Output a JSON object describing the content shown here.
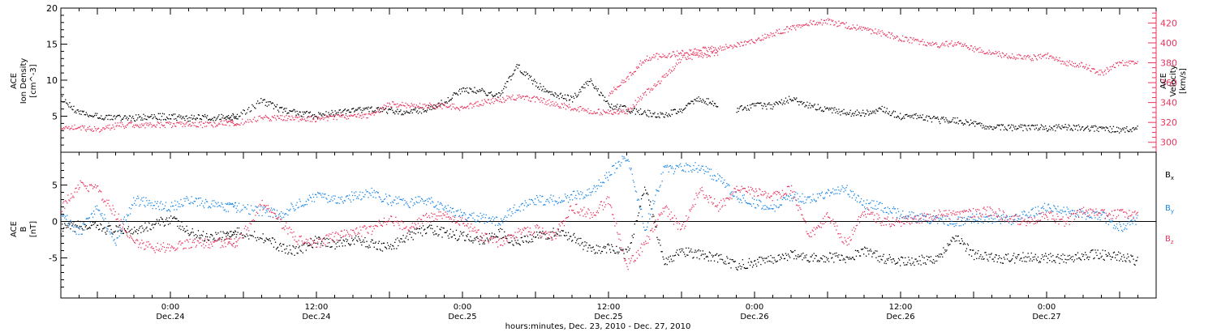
{
  "chart_data": [
    {
      "type": "scatter",
      "title": "",
      "ylabel_left": [
        "ACE",
        "Ion Density",
        "[cm^-3]"
      ],
      "ylabel_right": [
        "ACE",
        "Velocity",
        "[km/s]"
      ],
      "ylim_left": [
        0,
        20
      ],
      "ylim_right": [
        290,
        435
      ],
      "yticks_left": [
        "5",
        "10",
        "15",
        "20"
      ],
      "yticks_right": [
        "300",
        "320",
        "340",
        "360",
        "380",
        "400",
        "420"
      ],
      "series": [
        {
          "name": "",
          "axis": "left",
          "color": "#000000",
          "x": [
            -18,
            -15,
            -12,
            -9,
            -6,
            -3,
            0,
            3,
            6,
            9,
            11,
            15,
            18,
            21,
            24,
            27,
            30,
            33,
            36,
            39,
            42,
            45,
            48,
            51,
            54,
            57,
            60,
            63,
            66,
            69,
            72,
            75,
            78,
            81,
            84,
            87,
            90
          ],
          "y": [
            7.5,
            5.5,
            5.0,
            4.9,
            4.8,
            5.0,
            5.0,
            4.8,
            4.9,
            5.0,
            5.0,
            7.2,
            6.0,
            5.5,
            5.2,
            5.5,
            5.8,
            6.0,
            5.8,
            5.5,
            6.0,
            7.0,
            8.8,
            8.5,
            8.0,
            12.0,
            9.5,
            8.0,
            7.5,
            10.0,
            6.5,
            6.0,
            5.5,
            5.2,
            6.0,
            7.5,
            6.5
          ]
        },
        {
          "name": "",
          "axis": "right",
          "color": "#e8345e",
          "x": [
            -18,
            -15,
            -12,
            -9,
            -6,
            -3,
            0,
            3,
            6,
            9,
            11,
            15,
            18,
            21,
            24,
            27,
            30,
            33,
            36,
            39,
            42,
            45,
            48,
            51,
            54,
            57,
            60,
            63,
            66,
            69,
            72,
            75,
            78,
            81,
            84,
            87,
            90
          ],
          "y": [
            316,
            315,
            313,
            317,
            318,
            318,
            318,
            319,
            318,
            320,
            320,
            325,
            325,
            324,
            324,
            326,
            327,
            327,
            339,
            338,
            337,
            337,
            335,
            340,
            343,
            346,
            344,
            339,
            335,
            332,
            330,
            332,
            350,
            365,
            385,
            388,
            390
          ]
        },
        {
          "name": "",
          "axis": "right",
          "color": "#e8345e",
          "x": [
            72,
            75,
            78,
            81,
            84,
            87,
            90,
            93,
            96,
            99,
            102,
            105,
            108,
            111,
            114,
            117,
            120,
            123,
            126,
            129,
            132,
            135,
            138,
            141,
            144,
            147,
            150,
            153,
            156,
            159
          ],
          "y": [
            350,
            365,
            385,
            388,
            390,
            393,
            395,
            398,
            403,
            410,
            415,
            420,
            422,
            418,
            414,
            410,
            405,
            402,
            398,
            400,
            394,
            390,
            387,
            385,
            388,
            380,
            378,
            370,
            380,
            380
          ]
        },
        {
          "name": "",
          "axis": "left",
          "color": "#000000",
          "x": [
            93,
            96,
            99,
            102,
            105,
            108,
            111,
            114,
            117,
            120,
            123,
            126,
            129,
            132,
            135,
            138,
            141,
            144,
            147,
            150,
            153,
            156,
            159
          ],
          "y": [
            6.0,
            6.5,
            6.5,
            7.5,
            6.5,
            6.0,
            5.5,
            5.5,
            6.0,
            5.0,
            5.0,
            4.5,
            4.5,
            4.0,
            3.5,
            3.5,
            3.5,
            3.4,
            3.5,
            3.5,
            3.3,
            3.2,
            3.4
          ]
        }
      ]
    },
    {
      "type": "scatter",
      "title": "",
      "ylabel_left": [
        "ACE",
        "B",
        "[nT]"
      ],
      "ylim_left": [
        -10.5,
        9.5
      ],
      "yticks_left": [
        "-5",
        "0",
        "5"
      ],
      "zero_line": true,
      "series": [
        {
          "name": "B_x",
          "color": "#000000",
          "x": [
            -18,
            -15,
            -12,
            -9,
            -6,
            -3,
            0,
            3,
            6,
            9,
            11,
            15,
            18,
            21,
            24,
            27,
            30,
            33,
            36,
            39,
            42,
            45,
            48,
            51,
            54,
            57,
            60,
            63,
            66,
            69,
            72,
            75,
            78,
            81,
            84,
            87,
            90,
            93,
            96,
            99,
            102,
            105,
            108,
            111,
            114,
            117,
            120,
            123,
            126,
            129,
            132,
            135,
            138,
            141,
            144,
            147,
            150,
            153,
            156,
            159
          ],
          "y": [
            -1,
            -0.5,
            -0.8,
            -1.2,
            -1.0,
            -0.5,
            0.5,
            -1.5,
            -2.0,
            -1.8,
            -1.5,
            -2.0,
            -3.5,
            -4.0,
            -2.5,
            -3.0,
            -2.5,
            -3.0,
            -3.5,
            -2.0,
            -1.0,
            -1.5,
            -2.0,
            -2.5,
            -1.5,
            -3.0,
            -2.0,
            -1.5,
            -2.0,
            -4.0,
            -3.5,
            -4.5,
            5.0,
            -5.5,
            -4.0,
            -4.5,
            -5.0,
            -6.0,
            -5.5,
            -5.0,
            -4.5,
            -5.0,
            -4.8,
            -5.0,
            -4.0,
            -5.0,
            -5.5,
            -5.2,
            -5.0,
            -2.0,
            -4.5,
            -5.0,
            -5.0,
            -4.8,
            -5.0,
            -5.0,
            -4.5,
            -4.5,
            -4.8,
            -5.5
          ]
        },
        {
          "name": "B_y",
          "color": "#1e88e5",
          "x": [
            -18,
            -15,
            -12,
            -9,
            -6,
            -3,
            0,
            3,
            6,
            9,
            11,
            15,
            18,
            21,
            24,
            27,
            30,
            33,
            36,
            39,
            42,
            45,
            48,
            51,
            54,
            57,
            60,
            63,
            66,
            69,
            72,
            75,
            78,
            81,
            84,
            87,
            90,
            93,
            96,
            99,
            102,
            105,
            108,
            111,
            114,
            117,
            120,
            123,
            126,
            129,
            132,
            135,
            138,
            141,
            144,
            147,
            150,
            153,
            156,
            159
          ],
          "y": [
            1,
            -1.5,
            2.0,
            -2.5,
            3.0,
            2.5,
            2.0,
            3.0,
            2.5,
            2.0,
            2.0,
            1.5,
            1.0,
            2.5,
            3.5,
            3.0,
            3.5,
            4.0,
            3.0,
            2.5,
            3.0,
            2.0,
            1.0,
            0.5,
            0.0,
            2.0,
            3.0,
            3.0,
            3.5,
            4.0,
            6.5,
            9.0,
            -1.0,
            7.0,
            7.5,
            7.5,
            6.0,
            3.5,
            2.5,
            2.0,
            3.5,
            3.0,
            4.0,
            4.5,
            2.5,
            2.0,
            1.0,
            0.5,
            0.5,
            0.0,
            0.5,
            0.5,
            0.3,
            1.0,
            2.0,
            1.5,
            1.0,
            0.8,
            -0.8,
            0.5
          ]
        },
        {
          "name": "B_z",
          "color": "#e8345e",
          "x": [
            -18,
            -15,
            -12,
            -9,
            -6,
            -3,
            0,
            3,
            6,
            9,
            11,
            15,
            18,
            21,
            24,
            27,
            30,
            33,
            36,
            39,
            42,
            45,
            48,
            51,
            54,
            57,
            60,
            63,
            66,
            69,
            72,
            75,
            78,
            81,
            84,
            87,
            90,
            93,
            96,
            99,
            102,
            105,
            108,
            111,
            114,
            117,
            120,
            123,
            126,
            129,
            132,
            135,
            138,
            141,
            144,
            147,
            150,
            153,
            156,
            159
          ],
          "y": [
            2,
            5.0,
            4.5,
            1.0,
            -3.0,
            -3.5,
            -3.5,
            -3.0,
            -3.0,
            -2.8,
            -3.0,
            2.5,
            0.0,
            -2.5,
            -3.0,
            -2.0,
            -1.5,
            -1.0,
            0.5,
            -1.0,
            0.5,
            1.0,
            0.0,
            -2.0,
            -3.0,
            -1.5,
            -1.0,
            -2.0,
            2.0,
            1.0,
            3.0,
            -6.0,
            -3.0,
            2.0,
            -1.0,
            4.5,
            2.0,
            4.5,
            4.0,
            3.5,
            4.5,
            -2.0,
            1.0,
            -3.0,
            1.5,
            0.0,
            0.0,
            0.5,
            1.0,
            1.0,
            1.2,
            1.5,
            0.5,
            0.0,
            1.0,
            0.0,
            1.5,
            1.0,
            1.2,
            1.0
          ]
        }
      ],
      "legend": [
        {
          "main": "B",
          "sub": "x",
          "color": "#000000"
        },
        {
          "main": "B",
          "sub": "y",
          "color": "#1e88e5"
        },
        {
          "main": "B",
          "sub": "z",
          "color": "#e8345e"
        }
      ]
    }
  ],
  "x_axis": {
    "xlim": [
      -18,
      162
    ],
    "ticks": [
      {
        "x": 0,
        "time": "0:00",
        "date": "Dec.24"
      },
      {
        "x": 24,
        "time": "12:00",
        "date": "Dec.24"
      },
      {
        "x": 48,
        "time": "0:00",
        "date": "Dec.25"
      },
      {
        "x": 72,
        "time": "12:00",
        "date": "Dec.25"
      },
      {
        "x": 96,
        "time": "0:00",
        "date": "Dec.26"
      },
      {
        "x": 120,
        "time": "12:00",
        "date": "Dec.26"
      },
      {
        "x": 144,
        "time": "0:00",
        "date": "Dec.27"
      }
    ],
    "label": "hours:minutes, Dec. 23, 2010 - Dec. 27, 2010"
  }
}
